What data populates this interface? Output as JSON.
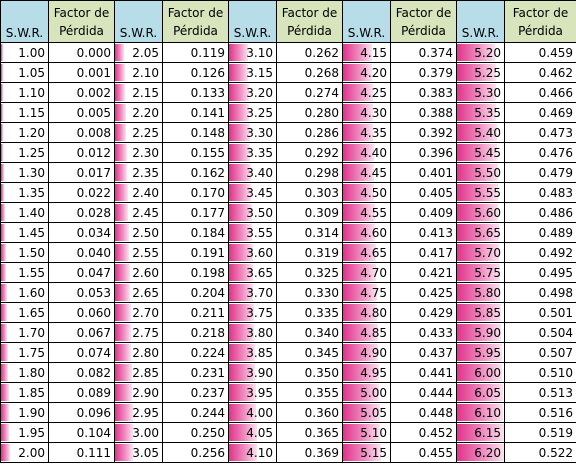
{
  "headers": {
    "swr": "S.W.R.",
    "factor_line1": "Factor de",
    "factor_line2": "Pérdida"
  },
  "swr_range": {
    "min": 1.0,
    "max": 6.2
  },
  "bar_gradient_colors": [
    "#e0338a",
    "#ef8cc0",
    "#fbe3ef"
  ],
  "header_colors": {
    "swr": "#b7dde8",
    "factor": "#d7e4bc"
  },
  "columns": [
    {
      "swr": [
        "1.00",
        "1.05",
        "1.10",
        "1.15",
        "1.20",
        "1.25",
        "1.30",
        "1.35",
        "1.40",
        "1.45",
        "1.50",
        "1.55",
        "1.60",
        "1.65",
        "1.70",
        "1.75",
        "1.80",
        "1.85",
        "1.90",
        "1.95",
        "2.00"
      ],
      "factor": [
        "0.000",
        "0.001",
        "0.002",
        "0.005",
        "0.008",
        "0.012",
        "0.017",
        "0.022",
        "0.028",
        "0.034",
        "0.040",
        "0.047",
        "0.053",
        "0.060",
        "0.067",
        "0.074",
        "0.082",
        "0.089",
        "0.096",
        "0.104",
        "0.111"
      ]
    },
    {
      "swr": [
        "2.05",
        "2.10",
        "2.15",
        "2.20",
        "2.25",
        "2.30",
        "2.35",
        "2.40",
        "2.45",
        "2.50",
        "2.55",
        "2.60",
        "2.65",
        "2.70",
        "2.75",
        "2.80",
        "2.85",
        "2.90",
        "2.95",
        "3.00",
        "3.05"
      ],
      "factor": [
        "0.119",
        "0.126",
        "0.133",
        "0.141",
        "0.148",
        "0.155",
        "0.162",
        "0.170",
        "0.177",
        "0.184",
        "0.191",
        "0.198",
        "0.204",
        "0.211",
        "0.218",
        "0.224",
        "0.231",
        "0.237",
        "0.244",
        "0.250",
        "0.256"
      ]
    },
    {
      "swr": [
        "3.10",
        "3.15",
        "3.20",
        "3.25",
        "3.30",
        "3.35",
        "3.40",
        "3.45",
        "3.50",
        "3.55",
        "3.60",
        "3.65",
        "3.70",
        "3.75",
        "3.80",
        "3.85",
        "3.90",
        "3.95",
        "4.00",
        "4.05",
        "4.10"
      ],
      "factor": [
        "0.262",
        "0.268",
        "0.274",
        "0.280",
        "0.286",
        "0.292",
        "0.298",
        "0.303",
        "0.309",
        "0.314",
        "0.319",
        "0.325",
        "0.330",
        "0.335",
        "0.340",
        "0.345",
        "0.350",
        "0.355",
        "0.360",
        "0.365",
        "0.369"
      ]
    },
    {
      "swr": [
        "4.15",
        "4.20",
        "4.25",
        "4.30",
        "4.35",
        "4.40",
        "4.45",
        "4.50",
        "4.55",
        "4.60",
        "4.65",
        "4.70",
        "4.75",
        "4.80",
        "4.85",
        "4.90",
        "4.95",
        "5.00",
        "5.05",
        "5.10",
        "5.15"
      ],
      "factor": [
        "0.374",
        "0.379",
        "0.383",
        "0.388",
        "0.392",
        "0.396",
        "0.401",
        "0.405",
        "0.409",
        "0.413",
        "0.417",
        "0.421",
        "0.425",
        "0.429",
        "0.433",
        "0.437",
        "0.441",
        "0.444",
        "0.448",
        "0.452",
        "0.455"
      ]
    },
    {
      "swr": [
        "5.20",
        "5.25",
        "5.30",
        "5.35",
        "5.40",
        "5.45",
        "5.50",
        "5.55",
        "5.60",
        "5.65",
        "5.70",
        "5.75",
        "5.80",
        "5.85",
        "5.90",
        "5.95",
        "6.00",
        "6.05",
        "6.10",
        "6.15",
        "6.20"
      ],
      "factor": [
        "0.459",
        "0.462",
        "0.466",
        "0.469",
        "0.473",
        "0.476",
        "0.479",
        "0.483",
        "0.486",
        "0.489",
        "0.492",
        "0.495",
        "0.498",
        "0.501",
        "0.504",
        "0.507",
        "0.510",
        "0.513",
        "0.516",
        "0.519",
        "0.522"
      ]
    }
  ]
}
